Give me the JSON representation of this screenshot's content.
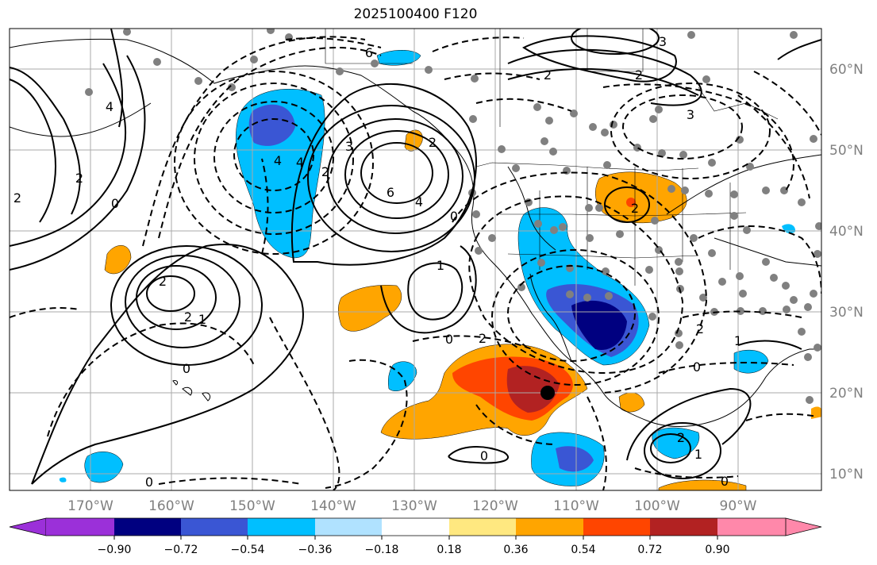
{
  "title": "2025100400 F120",
  "colors": {
    "purple": "#9b30d9",
    "navy": "#000080",
    "royal": "#3a56d4",
    "sky": "#00bfff",
    "lightsky": "#b0e2ff",
    "white": "#ffffff",
    "yellow": "#ffe880",
    "orange": "#ffa500",
    "redorange": "#ff4500",
    "firebrick": "#b22222",
    "pink": "#ff88aa"
  },
  "lat_labels": [
    "60°N",
    "50°N",
    "40°N",
    "30°N",
    "20°N",
    "10°N"
  ],
  "lon_labels": [
    "170°W",
    "160°W",
    "150°W",
    "140°W",
    "130°W",
    "120°W",
    "110°W",
    "100°W",
    "90°W"
  ],
  "colorbar": {
    "ticks": [
      "−0.90",
      "−0.72",
      "−0.54",
      "−0.36",
      "−0.18",
      "0.18",
      "0.36",
      "0.54",
      "0.72",
      "0.90"
    ],
    "bins": [
      "purple",
      "navy",
      "royal",
      "sky",
      "lightsky",
      "white",
      "yellow",
      "orange",
      "redorange",
      "firebrick",
      "pink"
    ]
  },
  "contour_labels": [
    "6",
    "4",
    "2",
    "0",
    "2",
    "4",
    "6",
    "3",
    "2",
    "1",
    "2",
    "2",
    "4",
    "0",
    "1",
    "2",
    "2",
    "0",
    "2",
    "1",
    "0",
    "0",
    "2",
    "3",
    "0",
    "2",
    "2",
    "1",
    "0",
    "3",
    "2",
    "4",
    "0"
  ]
}
